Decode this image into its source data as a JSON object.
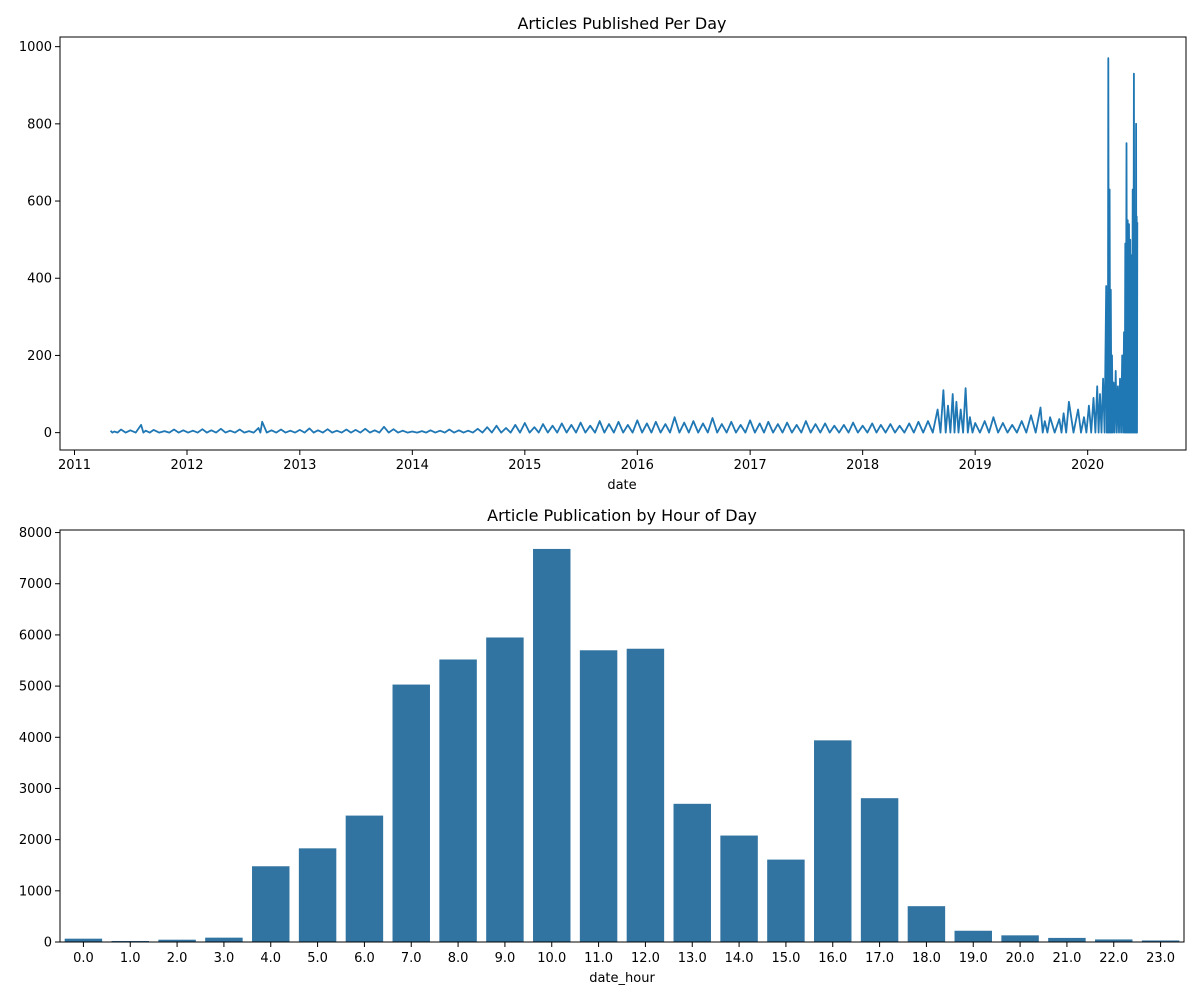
{
  "chart_data": [
    {
      "type": "line",
      "title": "Articles Published Per Day",
      "xlabel": "date",
      "ylabel": "",
      "xlim": [
        "2010-11-15",
        "2020-11-15"
      ],
      "ylim": [
        -45,
        1025
      ],
      "x_ticks": [
        "2011",
        "2012",
        "2013",
        "2014",
        "2015",
        "2016",
        "2017",
        "2018",
        "2019",
        "2020"
      ],
      "y_ticks": [
        0,
        200,
        400,
        600,
        800,
        1000
      ],
      "color": "#1f77b4",
      "grid": false,
      "series": [
        {
          "x": [
            "2011-04-28",
            "2011-05-10",
            "2011-06-01",
            "2011-07-01",
            "2011-08-05",
            "2011-08-20",
            "2011-09-15",
            "2011-10-20",
            "2011-11-20",
            "2011-12-20",
            "2012-01-20",
            "2012-02-20",
            "2012-03-20",
            "2012-04-20",
            "2012-05-20",
            "2012-06-20",
            "2012-07-20",
            "2012-08-20",
            "2012-09-01",
            "2012-10-01",
            "2012-11-01",
            "2012-12-01",
            "2013-01-01",
            "2013-02-01",
            "2013-03-01",
            "2013-04-01",
            "2013-05-01",
            "2013-06-01",
            "2013-07-01",
            "2013-08-01",
            "2013-09-01",
            "2013-10-01",
            "2013-11-01",
            "2013-12-01",
            "2014-01-01",
            "2014-02-01",
            "2014-03-01",
            "2014-04-01",
            "2014-05-01",
            "2014-06-01",
            "2014-07-01",
            "2014-08-01",
            "2014-09-01",
            "2014-10-01",
            "2014-11-01",
            "2014-12-01",
            "2015-01-01",
            "2015-02-01",
            "2015-03-01",
            "2015-04-01",
            "2015-05-01",
            "2015-06-01",
            "2015-07-01",
            "2015-08-01",
            "2015-09-01",
            "2015-10-01",
            "2015-11-01",
            "2015-12-01",
            "2016-01-01",
            "2016-02-01",
            "2016-03-01",
            "2016-04-01",
            "2016-05-01",
            "2016-06-01",
            "2016-07-01",
            "2016-08-01",
            "2016-09-01",
            "2016-10-01",
            "2016-11-01",
            "2016-12-01",
            "2017-01-01",
            "2017-02-01",
            "2017-03-01",
            "2017-04-01",
            "2017-05-01",
            "2017-06-01",
            "2017-07-01",
            "2017-08-01",
            "2017-09-01",
            "2017-10-01",
            "2017-11-01",
            "2017-12-01",
            "2018-01-01",
            "2018-02-01",
            "2018-03-01",
            "2018-04-01",
            "2018-05-01",
            "2018-06-01",
            "2018-07-01",
            "2018-08-01",
            "2018-09-01",
            "2018-09-20",
            "2018-10-05",
            "2018-10-20",
            "2018-11-01",
            "2018-11-15",
            "2018-12-01",
            "2018-12-15",
            "2019-01-01",
            "2019-02-01",
            "2019-03-01",
            "2019-04-01",
            "2019-05-01",
            "2019-06-01",
            "2019-07-01",
            "2019-08-01",
            "2019-08-15",
            "2019-09-01",
            "2019-10-01",
            "2019-10-15",
            "2019-11-01",
            "2019-12-01",
            "2019-12-20",
            "2020-01-05",
            "2020-01-20",
            "2020-02-01",
            "2020-02-10",
            "2020-02-20",
            "2020-03-01",
            "2020-03-05",
            "2020-03-08",
            "2020-03-12",
            "2020-03-16",
            "2020-03-20",
            "2020-03-25",
            "2020-04-01",
            "2020-04-08",
            "2020-04-15",
            "2020-04-22",
            "2020-04-28",
            "2020-05-02",
            "2020-05-06",
            "2020-05-10",
            "2020-05-14",
            "2020-05-18",
            "2020-05-22",
            "2020-05-26",
            "2020-05-30",
            "2020-06-03",
            "2020-06-06",
            "2020-06-08",
            "2020-06-10"
          ],
          "y": [
            5,
            3,
            8,
            6,
            20,
            5,
            7,
            4,
            8,
            6,
            5,
            9,
            6,
            10,
            5,
            8,
            4,
            12,
            28,
            6,
            8,
            5,
            7,
            11,
            6,
            9,
            5,
            8,
            7,
            10,
            6,
            15,
            9,
            5,
            3,
            4,
            6,
            5,
            8,
            6,
            5,
            10,
            14,
            18,
            12,
            20,
            25,
            14,
            22,
            18,
            24,
            20,
            26,
            18,
            30,
            22,
            28,
            20,
            32,
            24,
            28,
            22,
            40,
            26,
            30,
            24,
            38,
            22,
            28,
            20,
            32,
            24,
            28,
            22,
            26,
            20,
            30,
            22,
            24,
            18,
            20,
            26,
            18,
            24,
            20,
            22,
            18,
            24,
            28,
            30,
            60,
            110,
            70,
            100,
            80,
            60,
            115,
            40,
            25,
            30,
            40,
            25,
            20,
            30,
            45,
            65,
            30,
            40,
            35,
            50,
            80,
            60,
            40,
            70,
            90,
            120,
            100,
            140,
            380,
            280,
            970,
            630,
            370,
            200,
            130,
            160,
            120,
            140,
            200,
            260,
            490,
            750,
            550,
            540,
            500,
            460,
            630,
            930,
            540,
            800,
            560,
            545
          ]
        }
      ]
    },
    {
      "type": "bar",
      "title": "Article Publication by Hour of Day",
      "xlabel": "date_hour",
      "ylabel": "",
      "ylim": [
        0,
        8050
      ],
      "y_ticks": [
        0,
        1000,
        2000,
        3000,
        4000,
        5000,
        6000,
        7000,
        8000
      ],
      "color": "#3274a1",
      "grid": false,
      "categories": [
        "0.0",
        "1.0",
        "2.0",
        "3.0",
        "4.0",
        "5.0",
        "6.0",
        "7.0",
        "8.0",
        "9.0",
        "10.0",
        "11.0",
        "12.0",
        "13.0",
        "14.0",
        "15.0",
        "16.0",
        "17.0",
        "18.0",
        "19.0",
        "20.0",
        "21.0",
        "22.0",
        "23.0"
      ],
      "values": [
        65,
        20,
        45,
        85,
        1480,
        1830,
        2470,
        5030,
        5520,
        5950,
        7680,
        5700,
        5730,
        2700,
        2080,
        1610,
        3940,
        2810,
        700,
        220,
        130,
        80,
        50,
        30
      ]
    }
  ]
}
